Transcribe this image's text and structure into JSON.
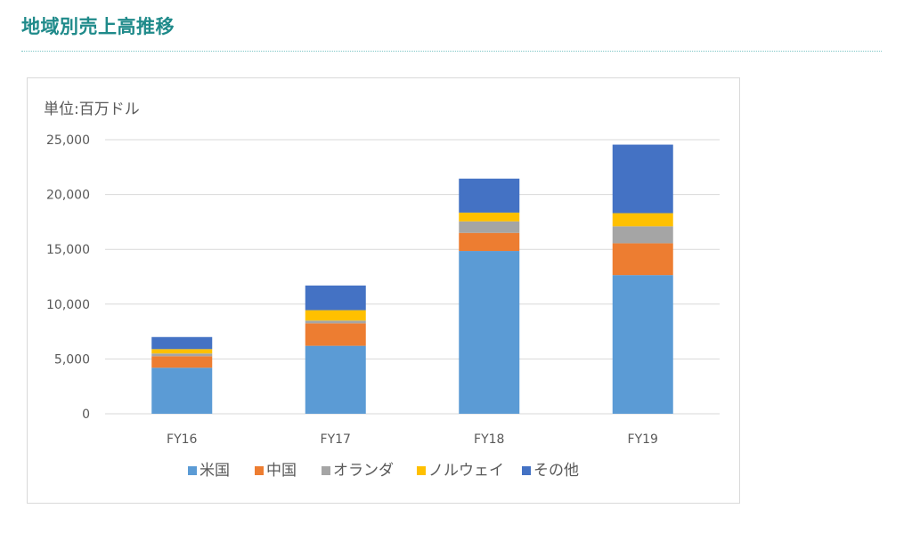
{
  "page": {
    "title": "地域別売上高推移"
  },
  "chart_data": {
    "type": "bar",
    "stacked": true,
    "title": "",
    "unit_label": "単位:百万ドル",
    "xlabel": "",
    "ylabel": "",
    "ylim": [
      0,
      25000
    ],
    "yticks": [
      0,
      5000,
      10000,
      15000,
      20000,
      25000
    ],
    "ytick_labels": [
      "0",
      "5,000",
      "10,000",
      "15,000",
      "20,000",
      "25,000"
    ],
    "grid": true,
    "legend_position": "bottom",
    "categories": [
      "FY16",
      "FY17",
      "FY18",
      "FY19"
    ],
    "series": [
      {
        "name": "米国",
        "color": "#5b9bd5",
        "values": [
          4200,
          6200,
          14850,
          12650
        ]
      },
      {
        "name": "中国",
        "color": "#ed7d31",
        "values": [
          1050,
          2050,
          1650,
          2900
        ]
      },
      {
        "name": "オランダ",
        "color": "#a5a5a5",
        "values": [
          250,
          250,
          1050,
          1550
        ]
      },
      {
        "name": "ノルウェイ",
        "color": "#ffc000",
        "values": [
          400,
          950,
          800,
          1200
        ]
      },
      {
        "name": "その他",
        "color": "#4472c4",
        "values": [
          1100,
          2250,
          3100,
          6250
        ]
      }
    ]
  }
}
